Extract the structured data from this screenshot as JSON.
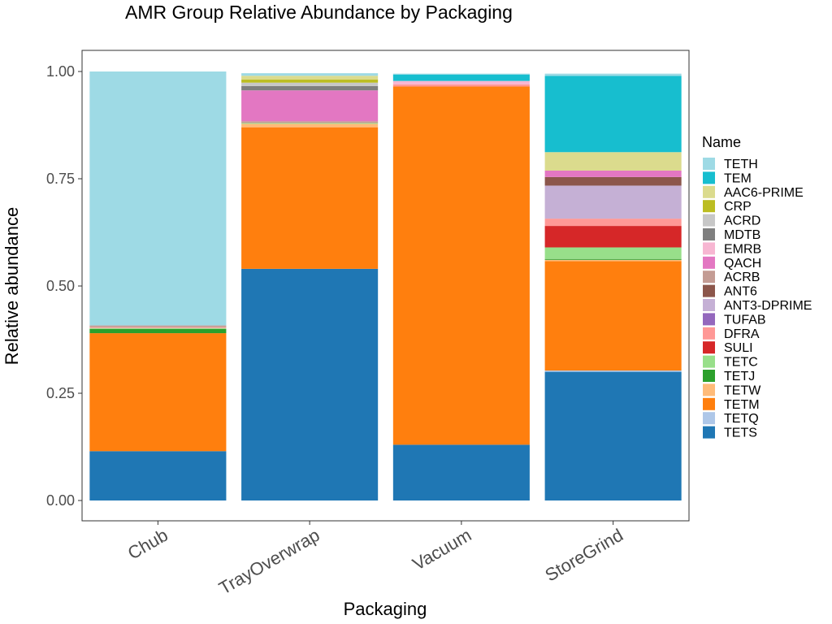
{
  "chart_data": {
    "type": "bar",
    "stacked": true,
    "title": "AMR Group Relative Abundance by Packaging",
    "xlabel": "Packaging",
    "ylabel": "Relative abundance",
    "ylim": [
      0,
      1.05
    ],
    "y_ticks": [
      "0.00",
      "0.25",
      "0.50",
      "0.75",
      "1.00"
    ],
    "y_tick_values": [
      0,
      0.25,
      0.5,
      0.75,
      1.0
    ],
    "grid": false,
    "legend_title": "Name",
    "legend_position": "right",
    "categories": [
      "Chub",
      "TrayOverwrap",
      "Vacuum",
      "StoreGrind"
    ],
    "series": [
      {
        "name": "TETS",
        "color": "#1f77b4",
        "values": [
          0.115,
          0.54,
          0.13,
          0.3
        ]
      },
      {
        "name": "TETQ",
        "color": "#aec7e8",
        "values": [
          0.0,
          0.0,
          0.0,
          0.003
        ]
      },
      {
        "name": "TETM",
        "color": "#ff7f0e",
        "values": [
          0.275,
          0.33,
          0.835,
          0.255
        ]
      },
      {
        "name": "TETW",
        "color": "#ffbb78",
        "values": [
          0.0,
          0.008,
          0.0,
          0.003
        ]
      },
      {
        "name": "TETJ",
        "color": "#2ca02c",
        "values": [
          0.01,
          0.0,
          0.0,
          0.002
        ]
      },
      {
        "name": "TETC",
        "color": "#98df8a",
        "values": [
          0.002,
          0.002,
          0.0,
          0.027
        ]
      },
      {
        "name": "SULI",
        "color": "#d62728",
        "values": [
          0.0,
          0.0,
          0.0,
          0.05
        ]
      },
      {
        "name": "DFRA",
        "color": "#ff9896",
        "values": [
          0.002,
          0.0,
          0.005,
          0.017
        ]
      },
      {
        "name": "TUFAB",
        "color": "#9467bd",
        "values": [
          0.0,
          0.0,
          0.0,
          0.0
        ]
      },
      {
        "name": "ANT3-DPRIME",
        "color": "#c5b0d5",
        "values": [
          0.0,
          0.0,
          0.0,
          0.077
        ]
      },
      {
        "name": "ANT6",
        "color": "#8c564b",
        "values": [
          0.0,
          0.0,
          0.0,
          0.02
        ]
      },
      {
        "name": "ACRB",
        "color": "#c49c94",
        "values": [
          0.004,
          0.004,
          0.0,
          0.0
        ]
      },
      {
        "name": "QACH",
        "color": "#e377c2",
        "values": [
          0.0,
          0.072,
          0.0,
          0.015
        ]
      },
      {
        "name": "EMRB",
        "color": "#f7b6d2",
        "values": [
          0.0,
          0.0,
          0.008,
          0.0
        ]
      },
      {
        "name": "MDTB",
        "color": "#7f7f7f",
        "values": [
          0.0,
          0.01,
          0.0,
          0.0
        ]
      },
      {
        "name": "ACRD",
        "color": "#c7c7c7",
        "values": [
          0.0,
          0.008,
          0.0,
          0.0
        ]
      },
      {
        "name": "CRP",
        "color": "#bcbd22",
        "values": [
          0.0,
          0.007,
          0.0,
          0.0
        ]
      },
      {
        "name": "AAC6-PRIME",
        "color": "#dbdb8d",
        "values": [
          0.0,
          0.009,
          0.0,
          0.043
        ]
      },
      {
        "name": "TEM",
        "color": "#17becf",
        "values": [
          0.0,
          0.0,
          0.015,
          0.178
        ]
      },
      {
        "name": "TETH",
        "color": "#9edae5",
        "values": [
          0.592,
          0.006,
          0.002,
          0.005
        ]
      }
    ]
  }
}
